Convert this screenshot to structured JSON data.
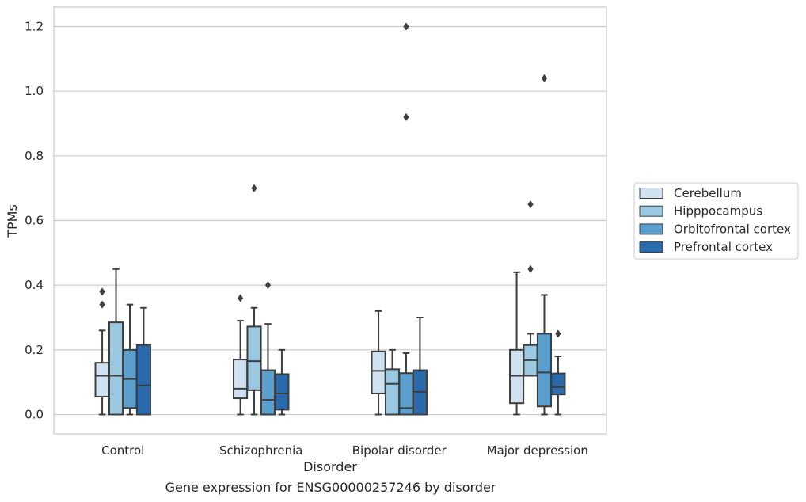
{
  "caption": "Gene expression for ENSG00000257246 by disorder",
  "chart_data": {
    "type": "box",
    "xlabel": "Disorder",
    "ylabel": "TPMs",
    "categories": [
      "Control",
      "Schizophrenia",
      "Bipolar disorder",
      "Major depression"
    ],
    "ylim": [
      -0.06,
      1.26
    ],
    "yticks": [
      0.0,
      0.2,
      0.4,
      0.6,
      0.8,
      1.0,
      1.2
    ],
    "ytick_labels": [
      "0.0",
      "0.2",
      "0.4",
      "0.6",
      "0.8",
      "1.0",
      "1.2"
    ],
    "grid": "horizontal",
    "legend_position": "right",
    "series": [
      {
        "name": "Cerebellum",
        "color": "#d0e1f2",
        "boxes": [
          {
            "whislo": 0.0,
            "q1": 0.055,
            "med": 0.12,
            "q3": 0.16,
            "whishi": 0.26,
            "fliers": [
              0.34,
              0.38
            ]
          },
          {
            "whislo": 0.0,
            "q1": 0.05,
            "med": 0.08,
            "q3": 0.17,
            "whishi": 0.29,
            "fliers": [
              0.36
            ]
          },
          {
            "whislo": 0.0,
            "q1": 0.065,
            "med": 0.135,
            "q3": 0.195,
            "whishi": 0.32,
            "fliers": []
          },
          {
            "whislo": 0.0,
            "q1": 0.035,
            "med": 0.12,
            "q3": 0.2,
            "whishi": 0.44,
            "fliers": []
          }
        ]
      },
      {
        "name": "Hipppocampus",
        "color": "#9ac8e0",
        "boxes": [
          {
            "whislo": 0.0,
            "q1": 0.0,
            "med": 0.12,
            "q3": 0.285,
            "whishi": 0.45,
            "fliers": []
          },
          {
            "whislo": 0.0,
            "q1": 0.075,
            "med": 0.165,
            "q3": 0.272,
            "whishi": 0.33,
            "fliers": [
              0.7
            ]
          },
          {
            "whislo": 0.0,
            "q1": 0.0,
            "med": 0.095,
            "q3": 0.14,
            "whishi": 0.2,
            "fliers": []
          },
          {
            "whislo": 0.12,
            "q1": 0.12,
            "med": 0.168,
            "q3": 0.215,
            "whishi": 0.25,
            "fliers": [
              0.45,
              0.65
            ]
          }
        ]
      },
      {
        "name": "Orbitofrontal cortex",
        "color": "#5a9fcd",
        "boxes": [
          {
            "whislo": 0.0,
            "q1": 0.02,
            "med": 0.11,
            "q3": 0.2,
            "whishi": 0.34,
            "fliers": []
          },
          {
            "whislo": 0.0,
            "q1": 0.0,
            "med": 0.045,
            "q3": 0.137,
            "whishi": 0.28,
            "fliers": [
              0.4
            ]
          },
          {
            "whislo": 0.0,
            "q1": 0.0,
            "med": 0.02,
            "q3": 0.128,
            "whishi": 0.19,
            "fliers": [
              0.92,
              1.2
            ]
          },
          {
            "whislo": 0.0,
            "q1": 0.025,
            "med": 0.13,
            "q3": 0.25,
            "whishi": 0.37,
            "fliers": [
              1.04
            ]
          }
        ]
      },
      {
        "name": "Prefrontal cortex",
        "color": "#2b6aaa",
        "boxes": [
          {
            "whislo": 0.0,
            "q1": 0.0,
            "med": 0.09,
            "q3": 0.215,
            "whishi": 0.33,
            "fliers": []
          },
          {
            "whislo": 0.0,
            "q1": 0.015,
            "med": 0.065,
            "q3": 0.125,
            "whishi": 0.2,
            "fliers": []
          },
          {
            "whislo": 0.0,
            "q1": 0.0,
            "med": 0.07,
            "q3": 0.137,
            "whishi": 0.3,
            "fliers": []
          },
          {
            "whislo": 0.0,
            "q1": 0.062,
            "med": 0.085,
            "q3": 0.127,
            "whishi": 0.18,
            "fliers": [
              0.25
            ]
          }
        ]
      }
    ]
  }
}
